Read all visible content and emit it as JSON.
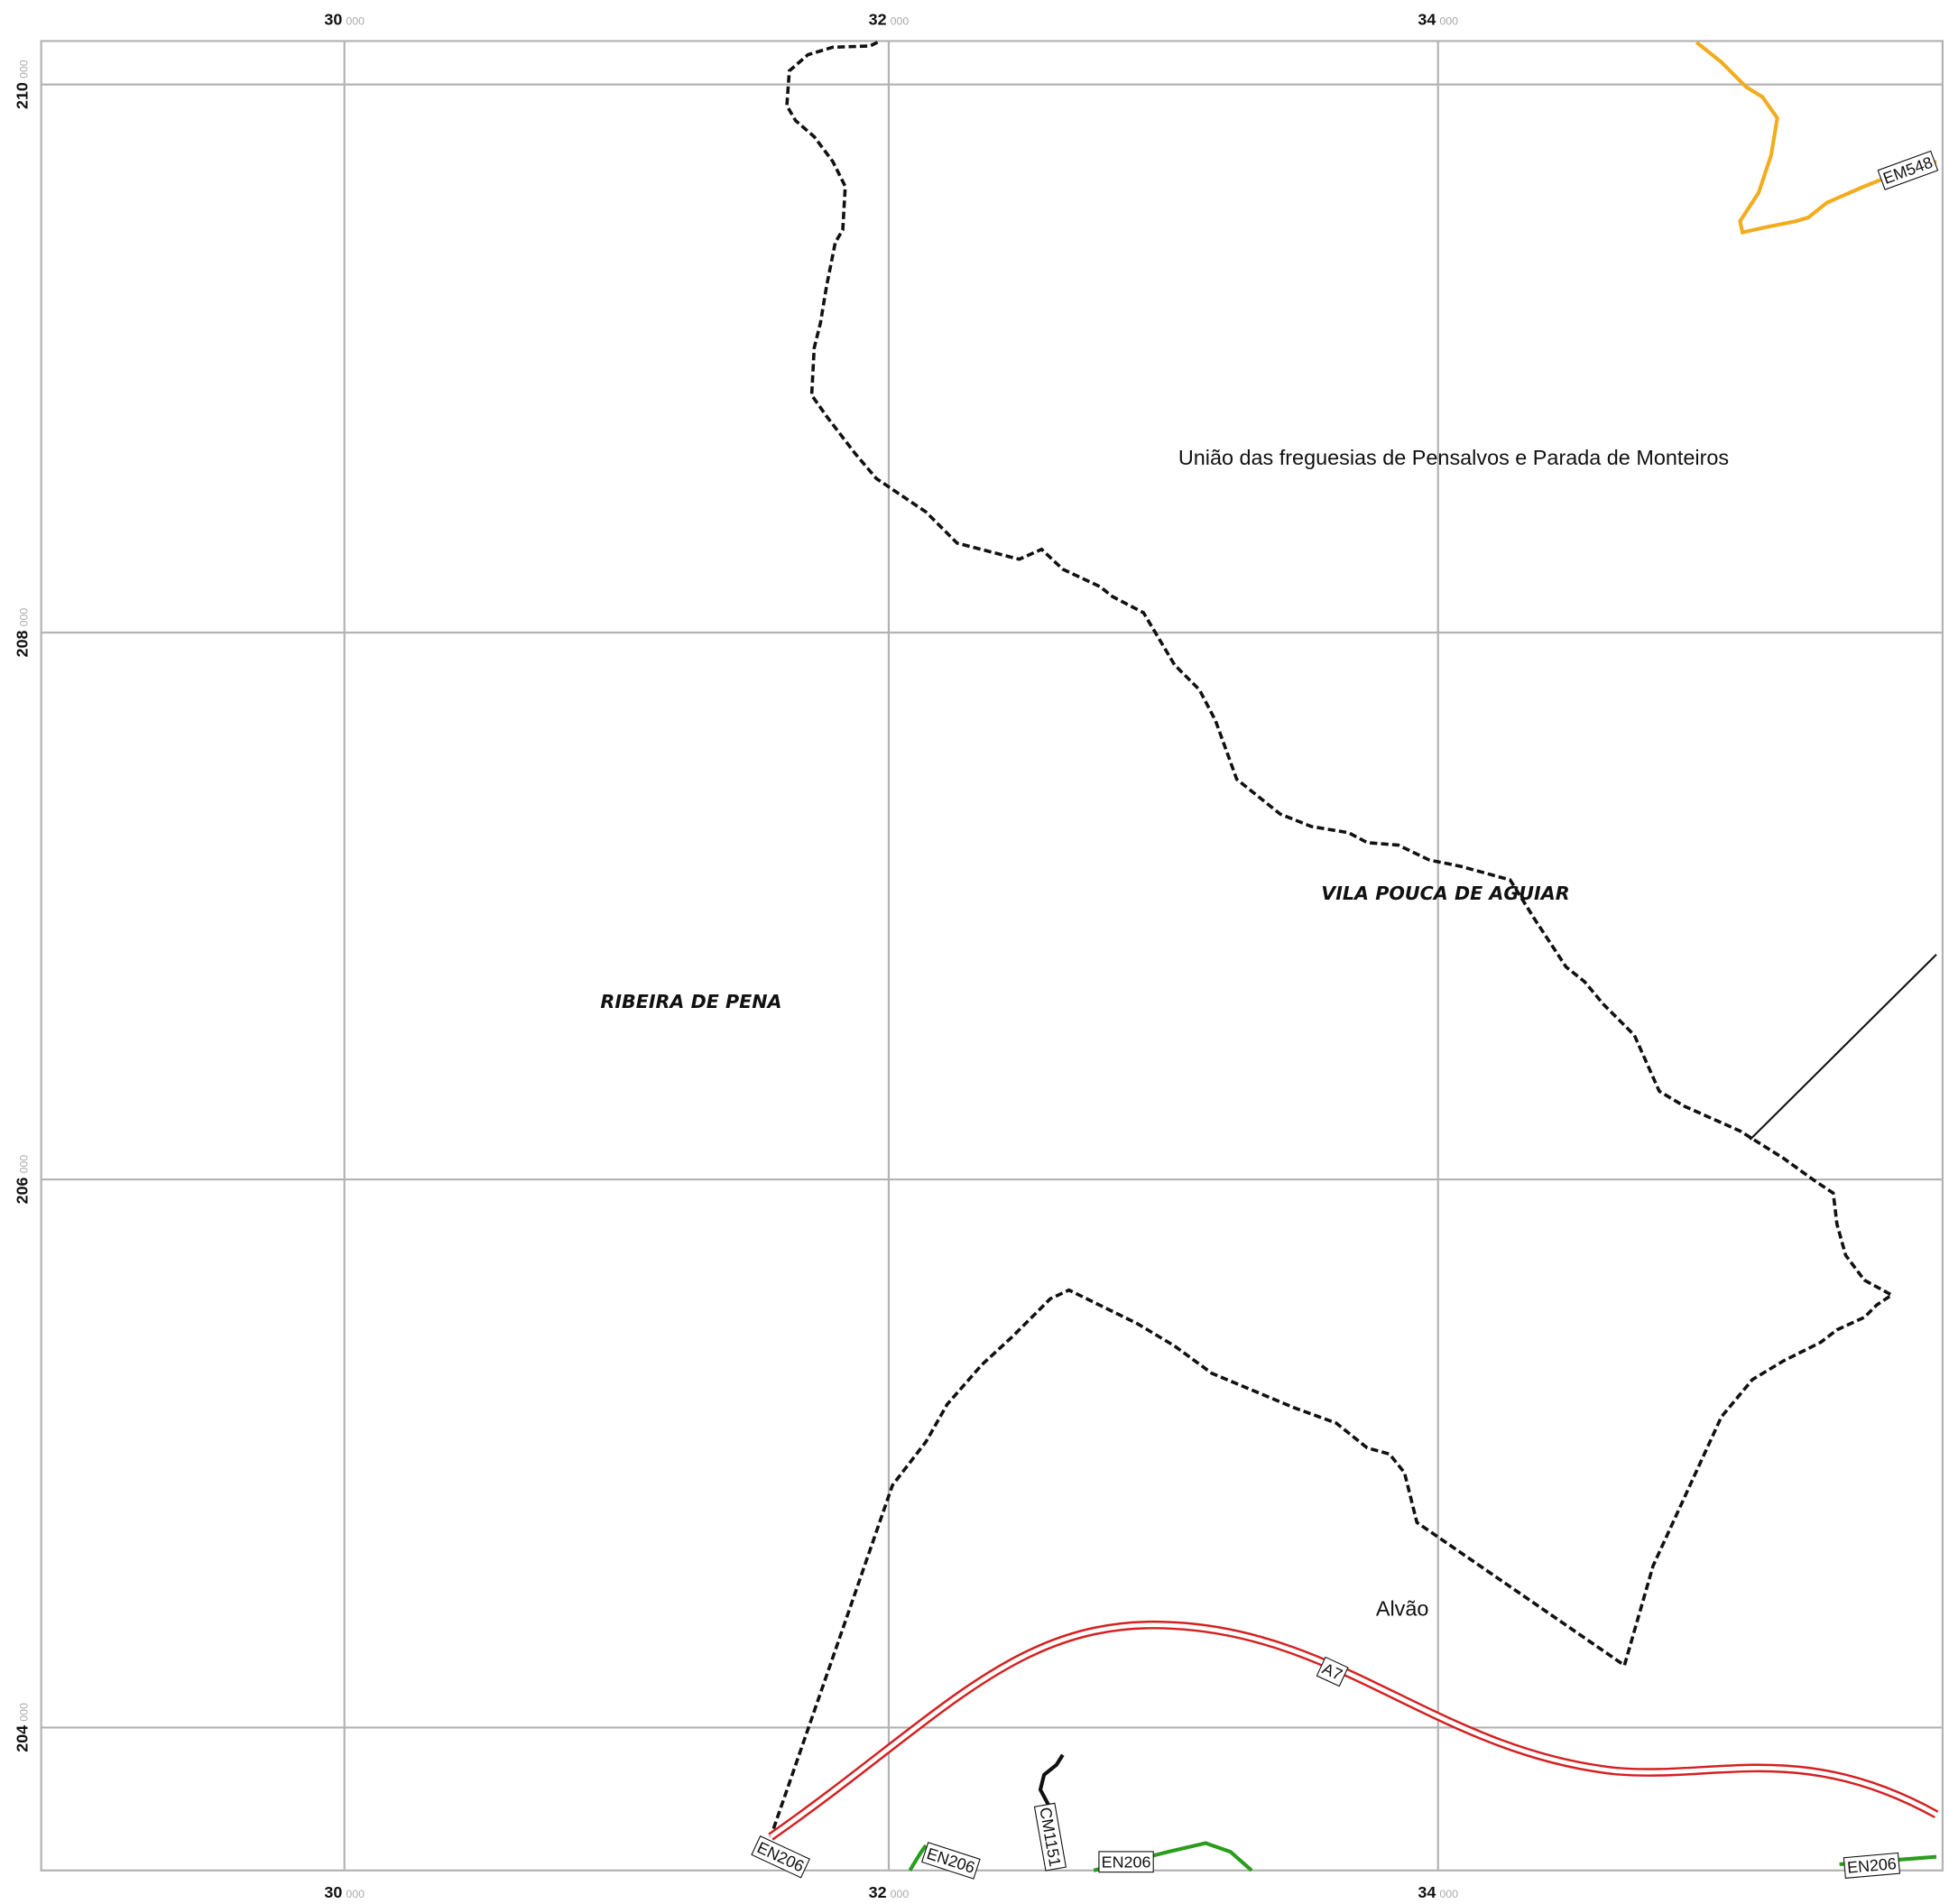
{
  "map": {
    "x_ticks": [
      {
        "major": "30",
        "minor": "000"
      },
      {
        "major": "32",
        "minor": "000"
      },
      {
        "major": "34",
        "minor": "000"
      }
    ],
    "y_ticks": [
      {
        "major": "210",
        "minor": "000"
      },
      {
        "major": "208",
        "minor": "000"
      },
      {
        "major": "206",
        "minor": "000"
      },
      {
        "major": "204",
        "minor": "000"
      }
    ],
    "places": {
      "parish": "União das freguesias de Pensalvos e Parada de Monteiros",
      "municipality_east": "VILA POUCA DE AGUIAR",
      "municipality_west": "RIBEIRA DE PENA",
      "locality": "Alvão"
    },
    "road_labels": [
      "EM548",
      "A7",
      "CM1151",
      "EN206",
      "EN206",
      "EN206",
      "EN206"
    ]
  }
}
